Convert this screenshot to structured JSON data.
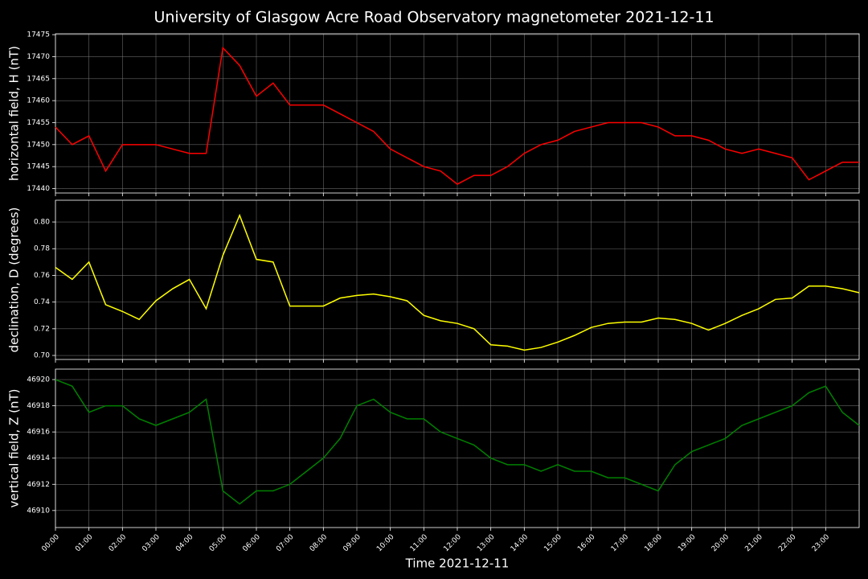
{
  "title": "University of Glasgow Acre Road Observatory magnetometer 2021-12-11",
  "chart_data": [
    {
      "type": "line",
      "ylabel": "horizontal field, H (nT)",
      "color": "#ff0000",
      "grid": true,
      "xlim": [
        0,
        24
      ],
      "ylim": [
        17439,
        17475.2
      ],
      "yticks": [
        17440,
        17445,
        17450,
        17455,
        17460,
        17465,
        17470,
        17475
      ],
      "x": [
        0,
        0.5,
        1,
        1.5,
        2,
        2.5,
        3,
        3.5,
        4,
        4.5,
        5,
        5.5,
        6,
        6.5,
        7,
        7.5,
        8,
        8.5,
        9,
        9.5,
        10,
        10.5,
        11,
        11.5,
        12,
        12.5,
        13,
        13.5,
        14,
        14.5,
        15,
        15.5,
        16,
        16.5,
        17,
        17.5,
        18,
        18.5,
        19,
        19.5,
        20,
        20.5,
        21,
        21.5,
        22,
        22.5,
        23,
        23.5,
        24
      ],
      "values": [
        17454,
        17450,
        17452,
        17444,
        17450,
        17450,
        17450,
        17449,
        17448,
        17448,
        17472,
        17468,
        17461,
        17464,
        17459,
        17459,
        17459,
        17457,
        17455,
        17453,
        17449,
        17447,
        17445,
        17444,
        17441,
        17443,
        17443,
        17445,
        17448,
        17450,
        17451,
        17453,
        17454,
        17455,
        17455,
        17455,
        17454,
        17452,
        17452,
        17451,
        17449,
        17448,
        17449,
        17448,
        17447,
        17442,
        17444,
        17446,
        17446
      ]
    },
    {
      "type": "line",
      "ylabel": "declination, D (degrees)",
      "color": "#ffff00",
      "grid": true,
      "xlim": [
        0,
        24
      ],
      "ylim": [
        0.697,
        0.8163
      ],
      "yticks": [
        {
          "value": 0.7,
          "label": "0.70"
        },
        0.72,
        0.74,
        0.76,
        0.78,
        {
          "value": 0.8,
          "label": "0.80"
        }
      ],
      "x": [
        0,
        0.5,
        1,
        1.5,
        2,
        2.5,
        3,
        3.5,
        4,
        4.5,
        5,
        5.5,
        6,
        6.5,
        7,
        7.5,
        8,
        8.5,
        9,
        9.5,
        10,
        10.5,
        11,
        11.5,
        12,
        12.5,
        13,
        13.5,
        14,
        14.5,
        15,
        15.5,
        16,
        16.5,
        17,
        17.5,
        18,
        18.5,
        19,
        19.5,
        20,
        20.5,
        21,
        21.5,
        22,
        22.5,
        23,
        23.5,
        24
      ],
      "values": [
        0.766,
        0.757,
        0.77,
        0.738,
        0.733,
        0.727,
        0.741,
        0.75,
        0.757,
        0.735,
        0.775,
        0.805,
        0.772,
        0.77,
        0.737,
        0.737,
        0.737,
        0.743,
        0.745,
        0.746,
        0.744,
        0.741,
        0.73,
        0.726,
        0.724,
        0.72,
        0.708,
        0.707,
        0.704,
        0.706,
        0.71,
        0.715,
        0.721,
        0.724,
        0.725,
        0.725,
        0.728,
        0.727,
        0.724,
        0.719,
        0.724,
        0.73,
        0.735,
        0.742,
        0.743,
        0.752,
        0.752,
        0.75,
        0.747
      ]
    },
    {
      "type": "line",
      "ylabel": "vertical field, Z (nT)",
      "xlabel": "Time 2021-12-11",
      "color": "#008000",
      "grid": true,
      "xlim": [
        0,
        24
      ],
      "ylim": [
        46908.7,
        46920.8
      ],
      "yticks": [
        46910,
        46912,
        46914,
        46916,
        46918,
        46920
      ],
      "xticks": [
        {
          "value": 0,
          "label": "00:00"
        },
        {
          "value": 1,
          "label": "01:00"
        },
        {
          "value": 2,
          "label": "02:00"
        },
        {
          "value": 3,
          "label": "03:00"
        },
        {
          "value": 4,
          "label": "04:00"
        },
        {
          "value": 5,
          "label": "05:00"
        },
        {
          "value": 6,
          "label": "06:00"
        },
        {
          "value": 7,
          "label": "07:00"
        },
        {
          "value": 8,
          "label": "08:00"
        },
        {
          "value": 9,
          "label": "09:00"
        },
        {
          "value": 10,
          "label": "10:00"
        },
        {
          "value": 11,
          "label": "11:00"
        },
        {
          "value": 12,
          "label": "12:00"
        },
        {
          "value": 13,
          "label": "13:00"
        },
        {
          "value": 14,
          "label": "14:00"
        },
        {
          "value": 15,
          "label": "15:00"
        },
        {
          "value": 16,
          "label": "16:00"
        },
        {
          "value": 17,
          "label": "17:00"
        },
        {
          "value": 18,
          "label": "18:00"
        },
        {
          "value": 19,
          "label": "19:00"
        },
        {
          "value": 20,
          "label": "20:00"
        },
        {
          "value": 21,
          "label": "21:00"
        },
        {
          "value": 22,
          "label": "22:00"
        },
        {
          "value": 23,
          "label": "23:00"
        }
      ],
      "x": [
        0,
        0.5,
        1,
        1.5,
        2,
        2.5,
        3,
        3.5,
        4,
        4.5,
        5,
        5.5,
        6,
        6.5,
        7,
        7.5,
        8,
        8.5,
        9,
        9.5,
        10,
        10.5,
        11,
        11.5,
        12,
        12.5,
        13,
        13.5,
        14,
        14.5,
        15,
        15.5,
        16,
        16.5,
        17,
        17.5,
        18,
        18.5,
        19,
        19.5,
        20,
        20.5,
        21,
        21.5,
        22,
        22.5,
        23,
        23.5,
        24
      ],
      "values": [
        46920,
        46919.5,
        46917.5,
        46918,
        46918,
        46917,
        46916.5,
        46917,
        46917.5,
        46918.5,
        46911.5,
        46910.5,
        46911.5,
        46911.5,
        46912,
        46913,
        46914,
        46915.5,
        46918,
        46918.5,
        46917.5,
        46917,
        46917,
        46916,
        46915.5,
        46915,
        46914,
        46913.5,
        46913.5,
        46913,
        46913.5,
        46913,
        46913,
        46912.5,
        46912.5,
        46912,
        46911.5,
        46913.5,
        46914.5,
        46915,
        46915.5,
        46916.5,
        46917,
        46917.5,
        46918,
        46919,
        46919.5,
        46917.5,
        46916.5
      ]
    }
  ]
}
